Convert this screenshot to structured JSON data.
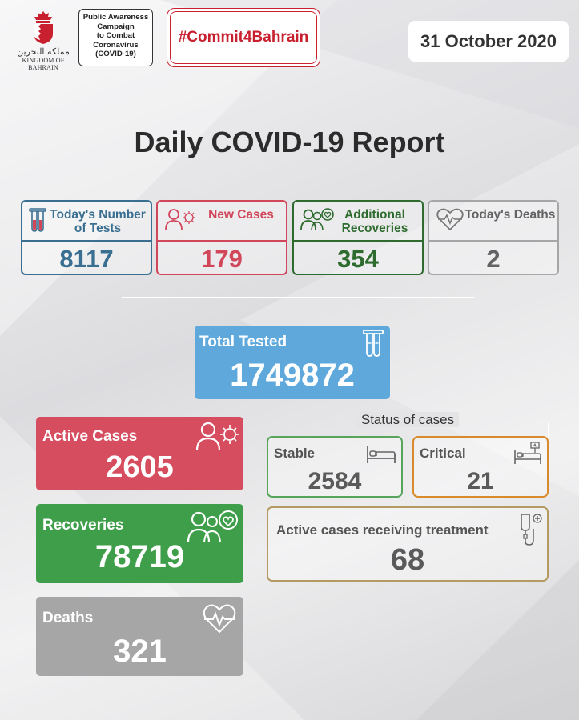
{
  "header": {
    "emblem_arabic": "مملكة البحرين",
    "emblem_english": "KINGDOM OF BAHRAIN",
    "campaign_lines": [
      "Public Awareness",
      "Campaign",
      "to Combat",
      "Coronavirus",
      "(COVID-19)"
    ],
    "hashtag": "#Commit4Bahrain",
    "date": "31 October 2020"
  },
  "title": "Daily COVID-19 Report",
  "stats": {
    "tests": {
      "label": "Today's Number of Tests",
      "value": "8117"
    },
    "new_cases": {
      "label": "New Cases",
      "value": "179"
    },
    "recoveries": {
      "label": "Additional Recoveries",
      "value": "354"
    },
    "deaths": {
      "label": "Today's Deaths",
      "value": "2"
    }
  },
  "totals": {
    "tested": {
      "label": "Total Tested",
      "value": "1749872"
    },
    "active": {
      "label": "Active Cases",
      "value": "2605"
    },
    "recoveries": {
      "label": "Recoveries",
      "value": "78719"
    },
    "deaths": {
      "label": "Deaths",
      "value": "321"
    }
  },
  "status": {
    "title": "Status of cases",
    "stable": {
      "label": "Stable",
      "value": "2584"
    },
    "critical": {
      "label": "Critical",
      "value": "21"
    },
    "treatment": {
      "label": "Active cases receiving treatment",
      "value": "68"
    }
  },
  "colors": {
    "blue": "#3a6f91",
    "red": "#d2465a",
    "green": "#2e6b2e",
    "gray": "#a6a6a6",
    "brand_red": "#c8202f",
    "total_blue": "#5ea8dc",
    "orange": "#d98a2a",
    "tan": "#b59a62"
  },
  "icons": {
    "tests": "test-tubes-icon",
    "new_cases": "person-virus-icon",
    "recoveries": "people-heart-icon",
    "deaths": "heartbeat-icon",
    "stable": "bed-icon",
    "critical": "icu-bed-icon",
    "treatment": "iv-drip-icon"
  }
}
